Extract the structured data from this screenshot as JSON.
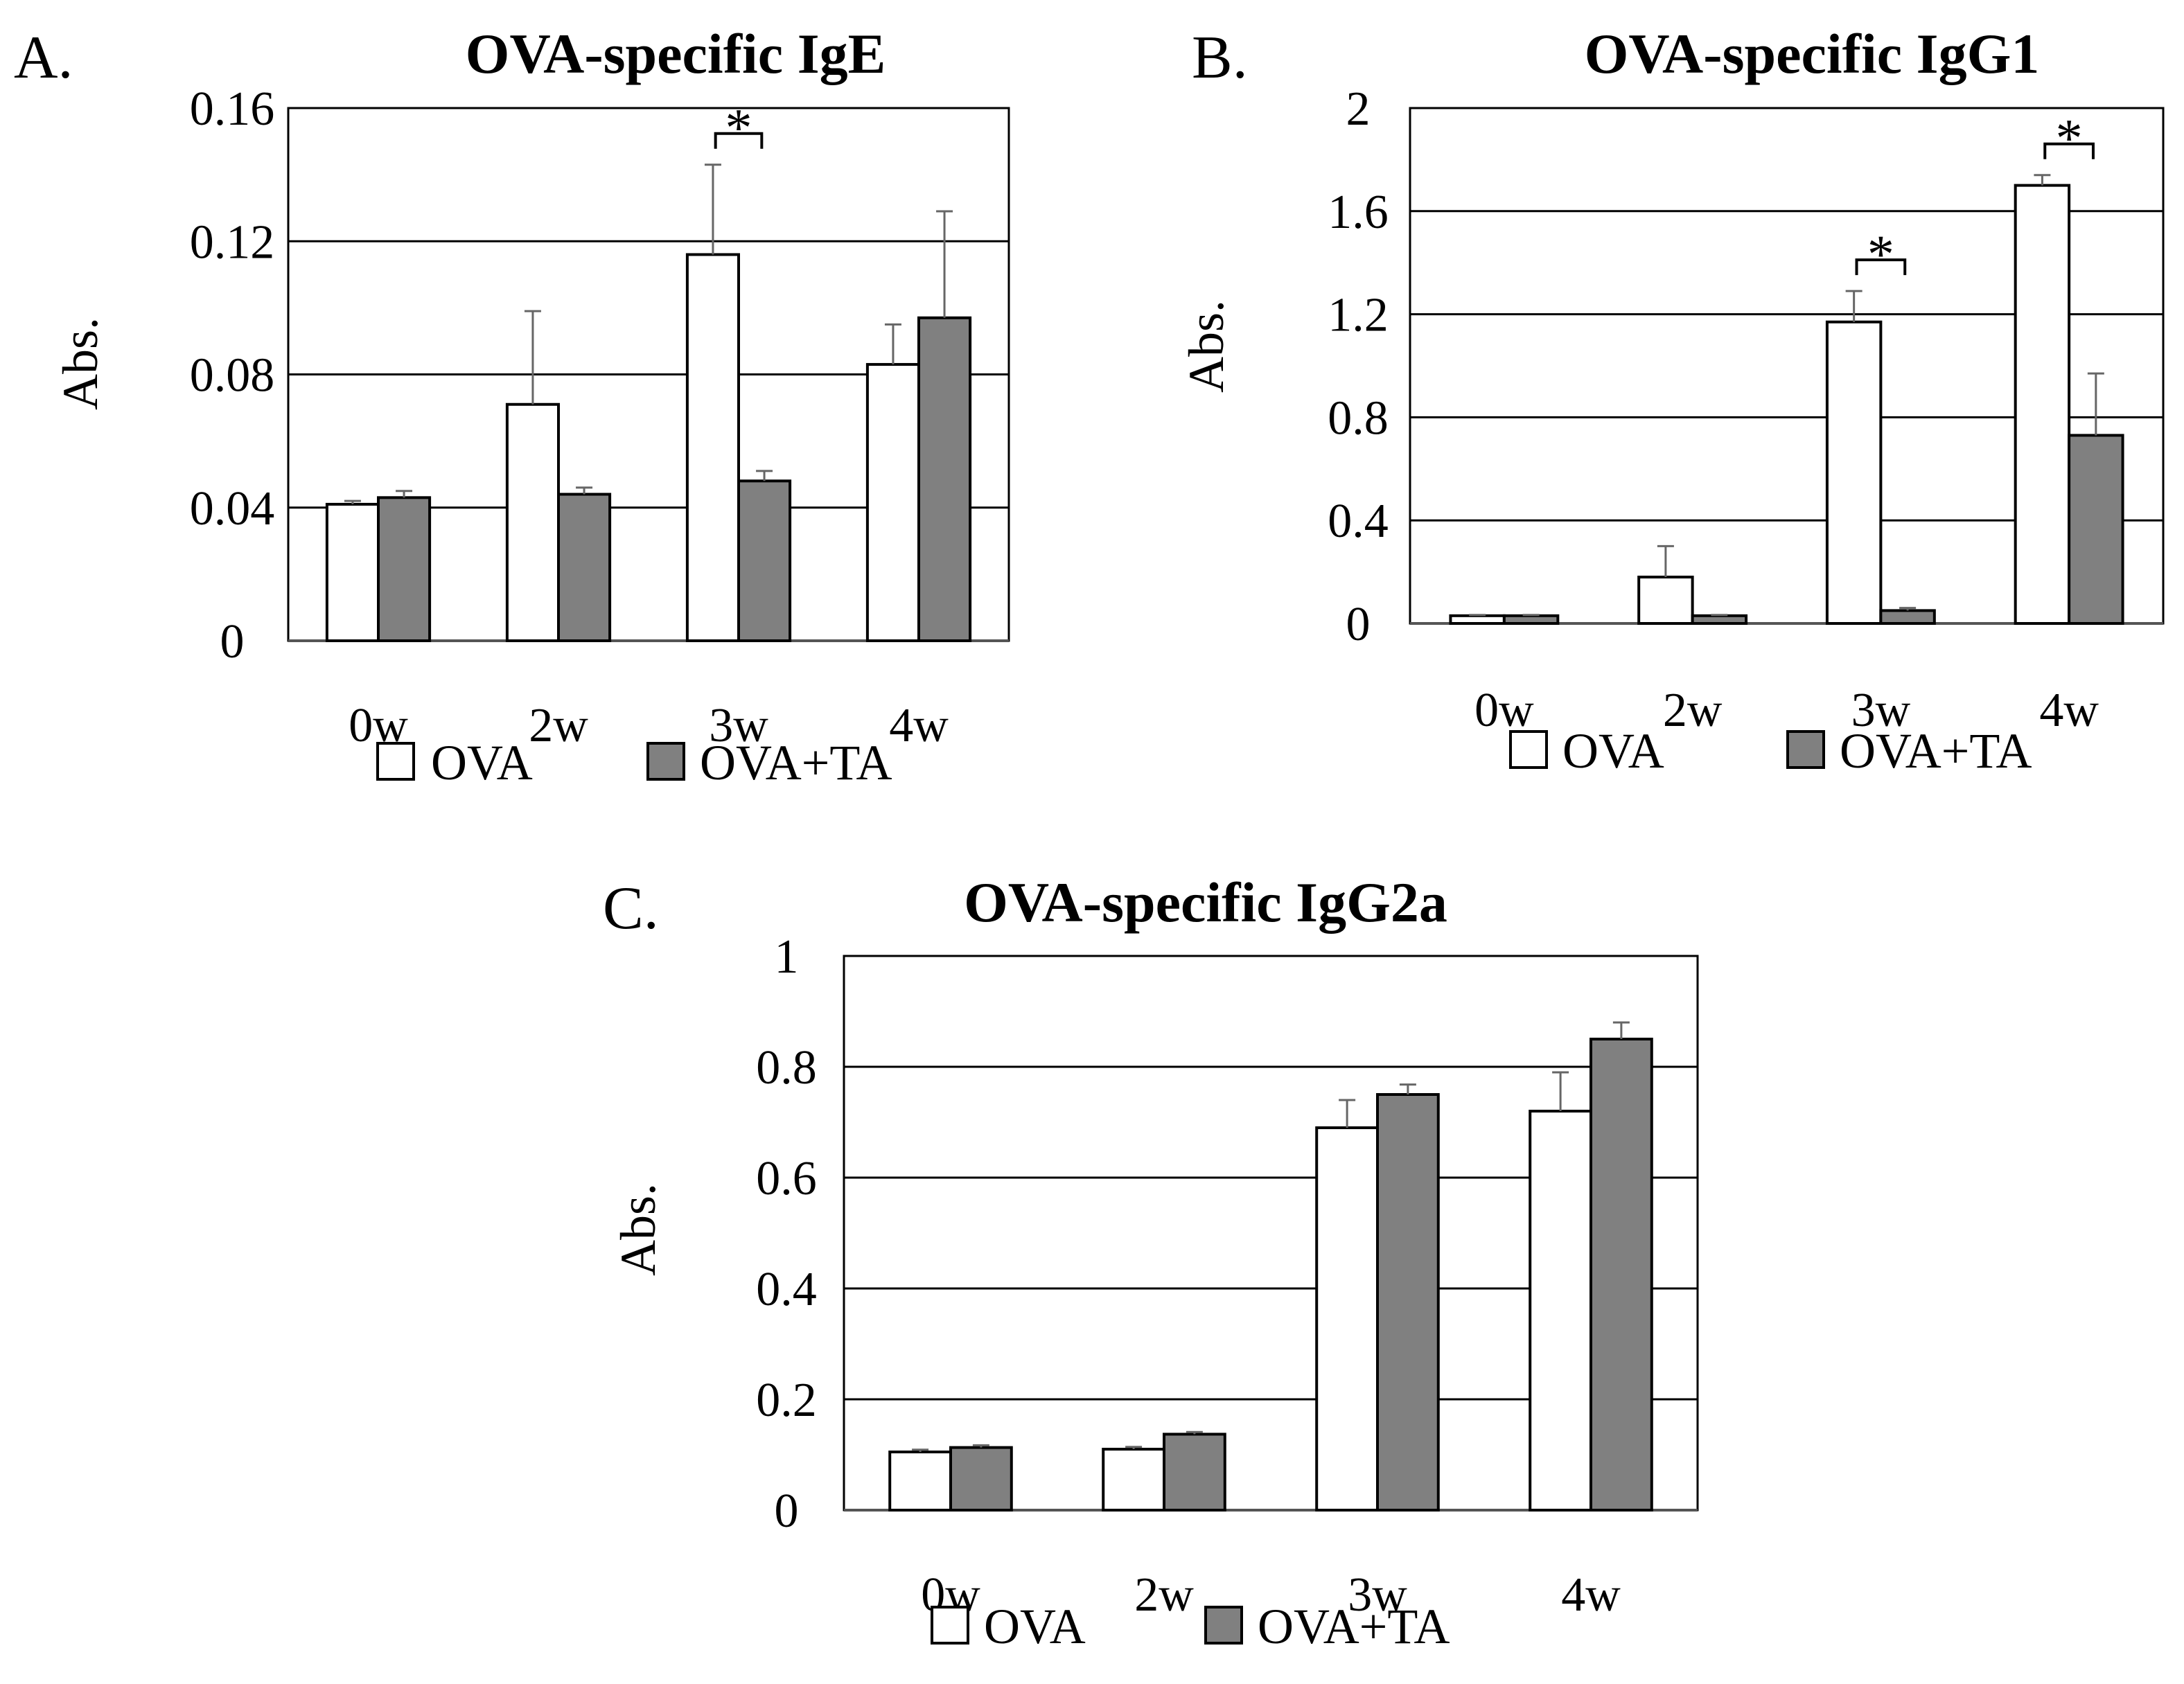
{
  "legend": {
    "items": [
      {
        "label": "OVA",
        "color": "#ffffff"
      },
      {
        "label": "OVA+TA",
        "color": "#808080"
      }
    ]
  },
  "chart_data": [
    {
      "panel": "A.",
      "type": "bar",
      "title": "OVA-specific IgE",
      "ylabel": "Abs.",
      "xlabel": "",
      "categories": [
        "0w",
        "2w",
        "3w",
        "4w"
      ],
      "ylim": [
        0,
        0.16
      ],
      "yticks": [
        0,
        0.04,
        0.08,
        0.12,
        0.16
      ],
      "ytick_labels": [
        "0",
        "0.04",
        "0.08",
        "0.12",
        "0.16"
      ],
      "series": [
        {
          "name": "OVA",
          "color": "#ffffff",
          "values": [
            0.041,
            0.071,
            0.116,
            0.083
          ],
          "errors": [
            0.001,
            0.028,
            0.027,
            0.012
          ]
        },
        {
          "name": "OVA+TA",
          "color": "#808080",
          "values": [
            0.043,
            0.044,
            0.048,
            0.097
          ],
          "errors": [
            0.002,
            0.002,
            0.003,
            0.032
          ]
        }
      ],
      "significance": [
        {
          "category_index": 2,
          "label": "*"
        }
      ],
      "grid": true,
      "legend": "bottom"
    },
    {
      "panel": "B.",
      "type": "bar",
      "title": "OVA-specific IgG1",
      "ylabel": "Abs.",
      "xlabel": "",
      "categories": [
        "0w",
        "2w",
        "3w",
        "4w"
      ],
      "ylim": [
        0,
        2
      ],
      "yticks": [
        0,
        0.4,
        0.8,
        1.2,
        1.6,
        2
      ],
      "ytick_labels": [
        "0",
        "0.4",
        "0.8",
        "1.2",
        "1.6",
        "2"
      ],
      "series": [
        {
          "name": "OVA",
          "color": "#ffffff",
          "values": [
            0.03,
            0.18,
            1.17,
            1.7
          ],
          "errors": [
            0.003,
            0.12,
            0.12,
            0.04
          ]
        },
        {
          "name": "OVA+TA",
          "color": "#808080",
          "values": [
            0.03,
            0.03,
            0.05,
            0.73
          ],
          "errors": [
            0.003,
            0.003,
            0.01,
            0.24
          ]
        }
      ],
      "significance": [
        {
          "category_index": 2,
          "label": "*"
        },
        {
          "category_index": 3,
          "label": "*"
        }
      ],
      "grid": true,
      "legend": "bottom"
    },
    {
      "panel": "C.",
      "type": "bar",
      "title": "OVA-specific IgG2a",
      "ylabel": "Abs.",
      "xlabel": "",
      "categories": [
        "0w",
        "2w",
        "3w",
        "4w"
      ],
      "ylim": [
        0,
        1
      ],
      "yticks": [
        0,
        0.2,
        0.4,
        0.6,
        0.8,
        1
      ],
      "ytick_labels": [
        "0",
        "0.2",
        "0.4",
        "0.6",
        "0.8",
        "1"
      ],
      "series": [
        {
          "name": "OVA",
          "color": "#ffffff",
          "values": [
            0.105,
            0.11,
            0.69,
            0.72
          ],
          "errors": [
            0.004,
            0.004,
            0.05,
            0.07
          ]
        },
        {
          "name": "OVA+TA",
          "color": "#808080",
          "values": [
            0.113,
            0.137,
            0.75,
            0.85
          ],
          "errors": [
            0.004,
            0.004,
            0.018,
            0.03
          ]
        }
      ],
      "significance": [],
      "grid": true,
      "legend": "bottom"
    }
  ]
}
